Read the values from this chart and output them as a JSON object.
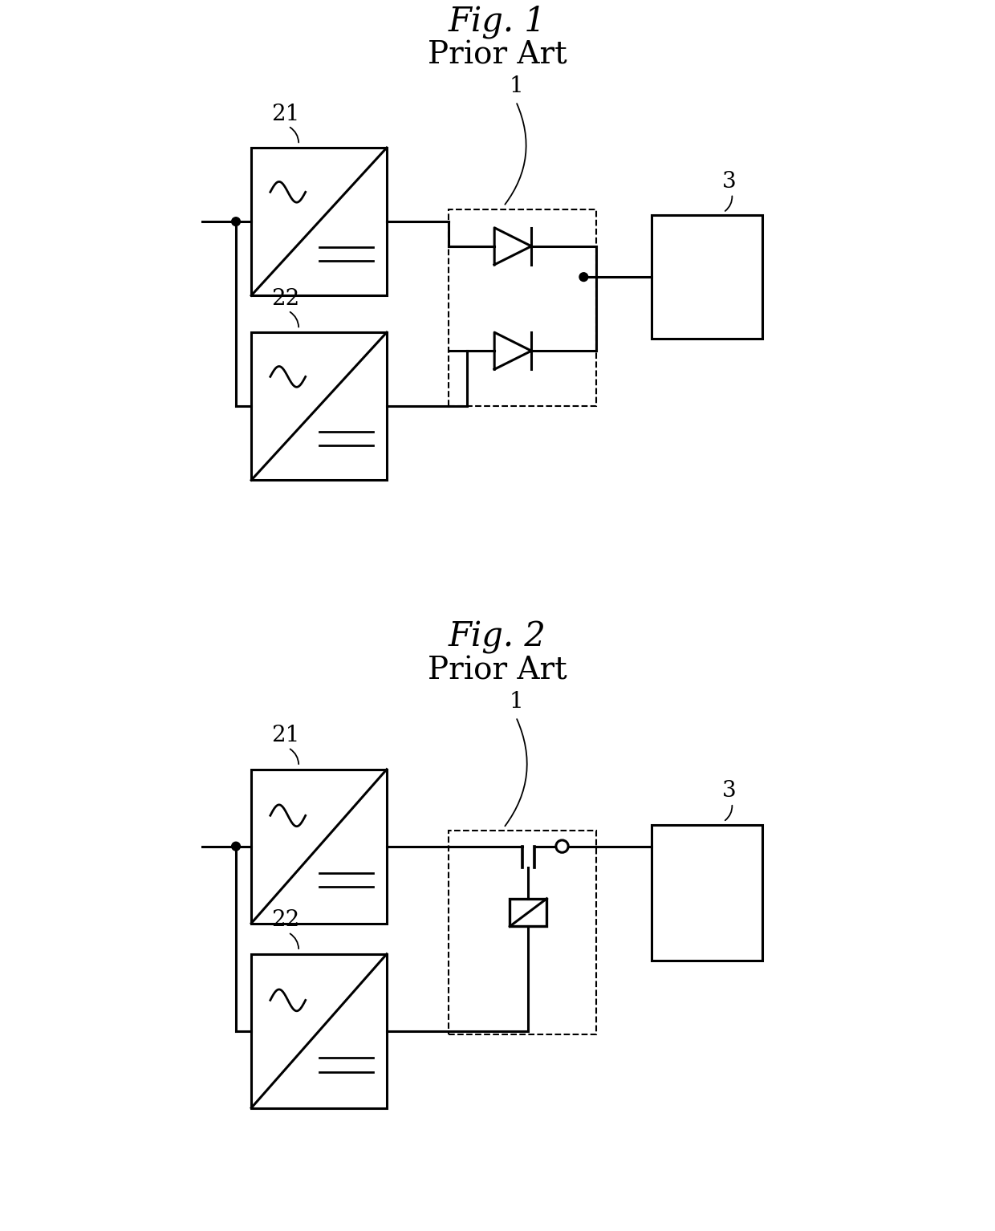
{
  "fig1_title": "Fig. 1",
  "fig1_subtitle": "Prior Art",
  "fig2_title": "Fig. 2",
  "fig2_subtitle": "Prior Art",
  "bg_color": "#ffffff",
  "line_color": "#000000",
  "lw": 2.2,
  "lw_dash": 1.5
}
